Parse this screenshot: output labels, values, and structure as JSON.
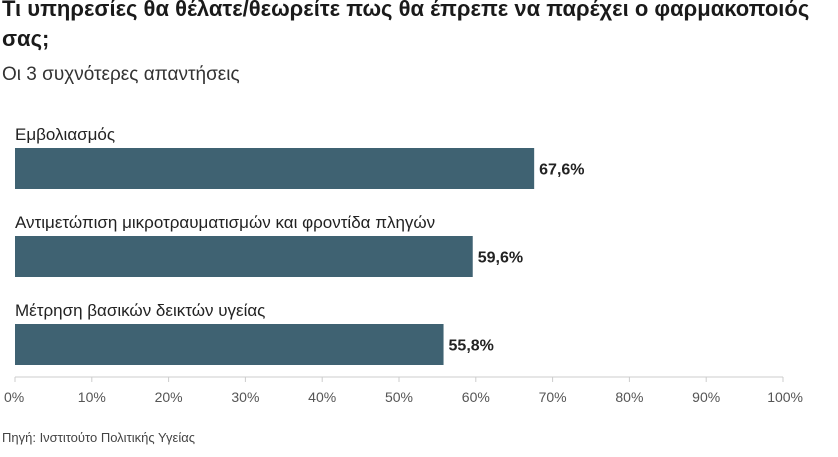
{
  "chart_data": {
    "type": "bar",
    "orientation": "horizontal",
    "title": "Τι υπηρεσίες θα θέλατε/θεωρείτε πως θα έπρεπε να παρέχει ο φαρμακοποιός σας;",
    "subtitle": "Οι 3 συχνότερες απαντήσεις",
    "categories": [
      "Εμβολιασμός",
      "Αντιμετώπιση μικροτραυματισμών και φροντίδα πληγών",
      "Μέτρηση βασικών δεικτών υγείας"
    ],
    "values": [
      67.6,
      59.6,
      55.8
    ],
    "value_labels": [
      "67,6%",
      "59,6%",
      "55,8%"
    ],
    "xlim": [
      0,
      100
    ],
    "x_ticks": [
      0,
      10,
      20,
      30,
      40,
      50,
      60,
      70,
      80,
      90,
      100
    ],
    "x_tick_labels": [
      "0%",
      "10%",
      "20%",
      "30%",
      "40%",
      "50%",
      "60%",
      "70%",
      "80%",
      "90%",
      "100%"
    ],
    "grid": false,
    "bar_color": "#3f6272",
    "axis_color": "#cccccc"
  },
  "source": "Πηγή: Ινστιτούτο Πολιτικής Υγείας"
}
